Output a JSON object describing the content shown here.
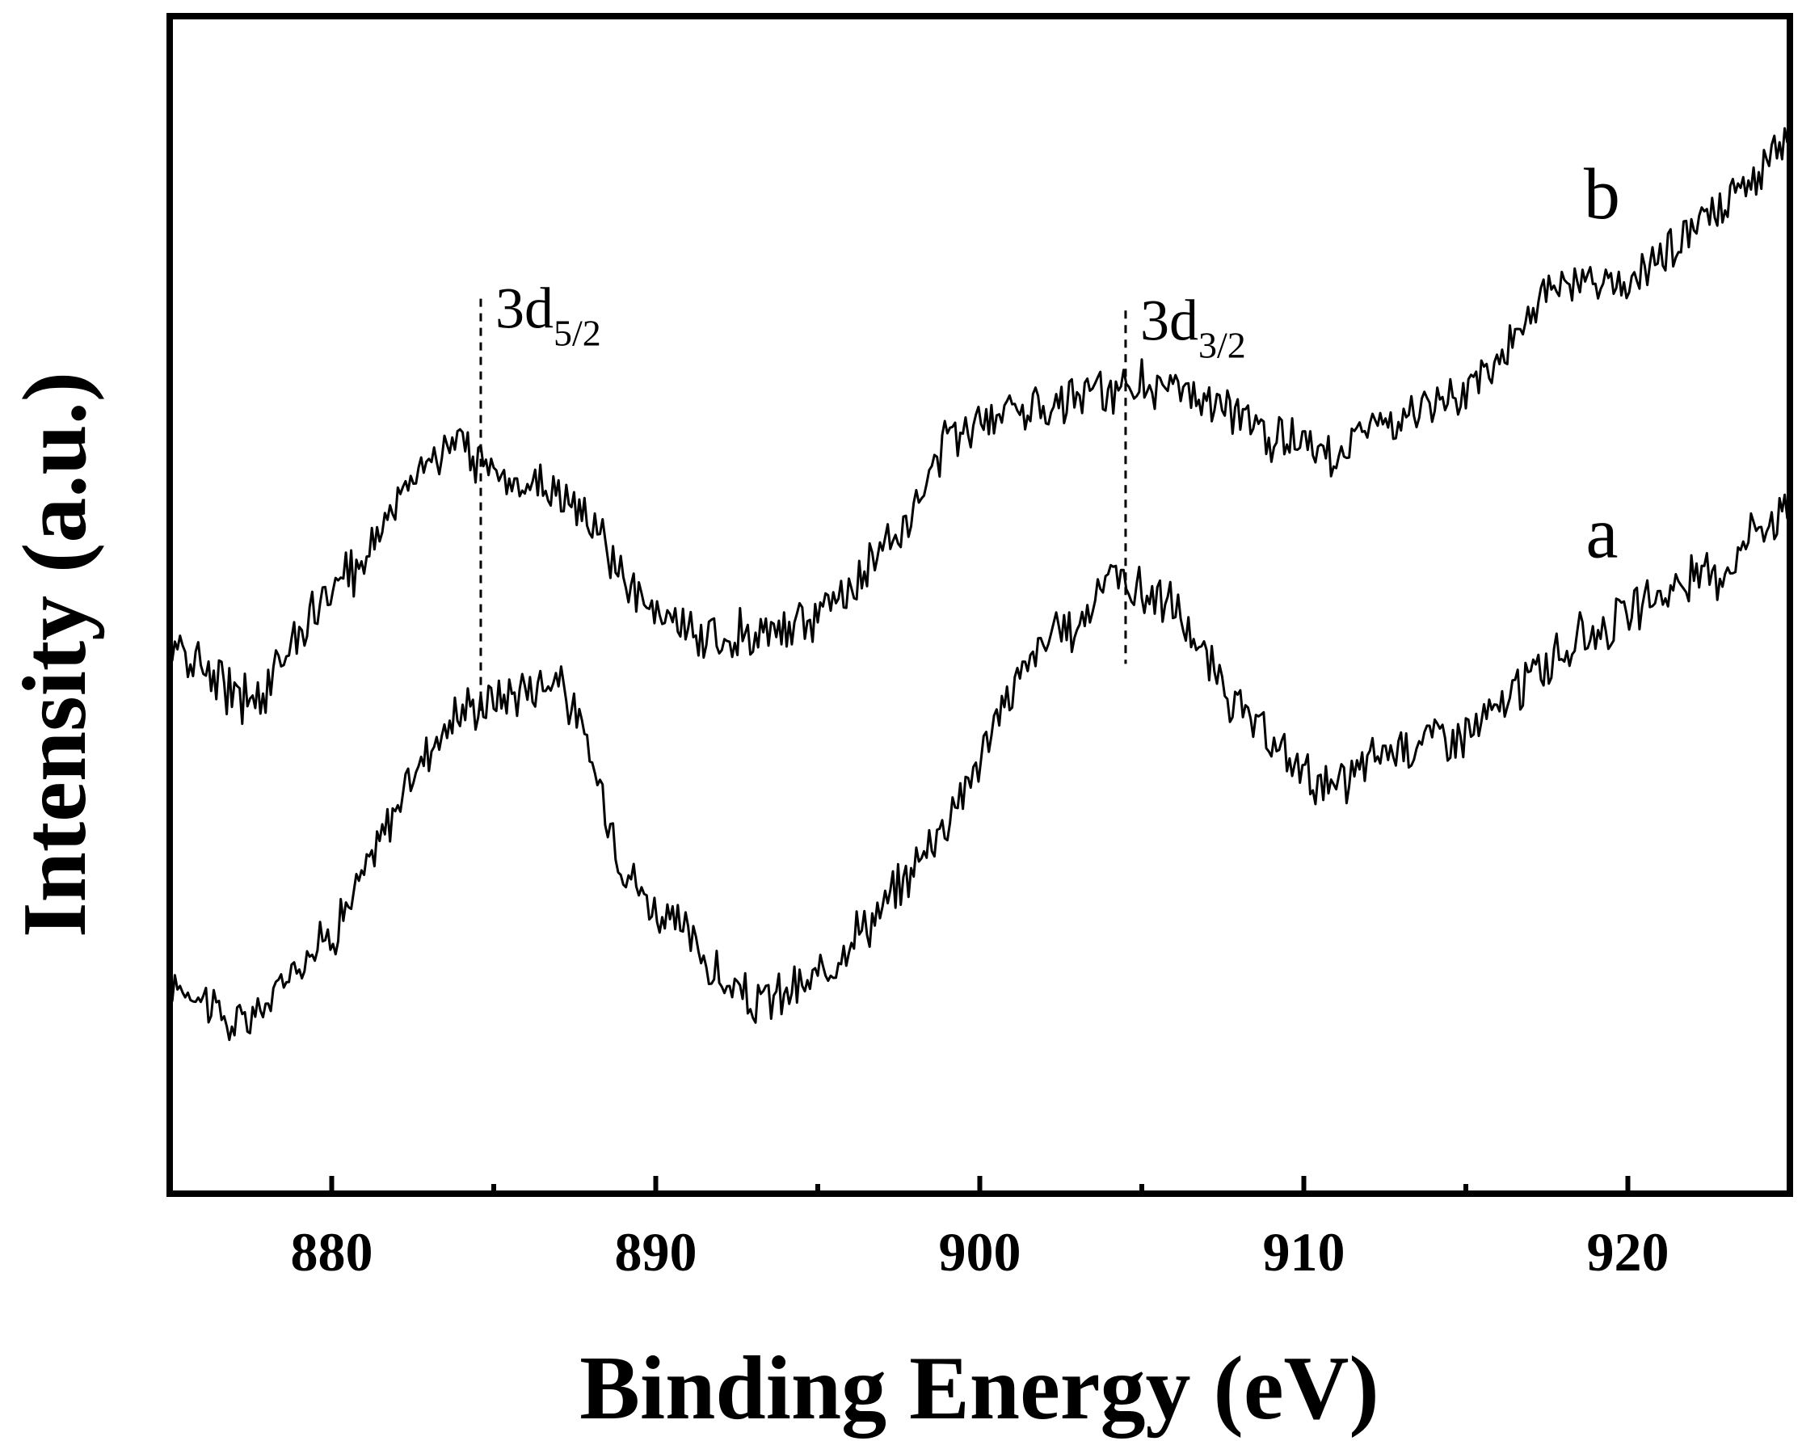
{
  "chart_data": {
    "type": "line",
    "xlabel": "Binding Energy (eV)",
    "ylabel": "Intensity (a.u.)",
    "xlim": [
      875,
      925
    ],
    "ylim": [
      0,
      100
    ],
    "xticks": [
      880,
      890,
      900,
      910,
      920
    ],
    "x_minor_ticks": [
      885,
      895,
      905,
      915
    ],
    "yticks_shown": false,
    "grid": false,
    "legend": "none",
    "line_color": "#000000",
    "series": [
      {
        "name": "a",
        "points": [
          [
            875.0,
            18
          ],
          [
            876.0,
            17
          ],
          [
            877.0,
            14
          ],
          [
            878.0,
            16
          ],
          [
            879.0,
            20
          ],
          [
            880.0,
            22
          ],
          [
            881.0,
            27
          ],
          [
            882.0,
            33
          ],
          [
            883.0,
            38
          ],
          [
            884.0,
            41
          ],
          [
            885.0,
            42
          ],
          [
            886.0,
            43
          ],
          [
            887.0,
            44
          ],
          [
            888.0,
            37
          ],
          [
            889.0,
            28
          ],
          [
            890.0,
            24
          ],
          [
            891.0,
            22
          ],
          [
            892.0,
            18
          ],
          [
            893.0,
            16
          ],
          [
            894.0,
            17
          ],
          [
            895.0,
            18
          ],
          [
            896.0,
            22
          ],
          [
            897.0,
            24
          ],
          [
            898.0,
            28
          ],
          [
            899.0,
            32
          ],
          [
            900.0,
            37
          ],
          [
            901.0,
            43
          ],
          [
            902.0,
            47
          ],
          [
            903.0,
            48
          ],
          [
            904.0,
            53
          ],
          [
            905.0,
            51
          ],
          [
            906.0,
            50
          ],
          [
            907.0,
            45
          ],
          [
            908.0,
            41
          ],
          [
            909.0,
            38
          ],
          [
            910.0,
            36
          ],
          [
            911.0,
            34
          ],
          [
            912.0,
            37
          ],
          [
            913.0,
            38
          ],
          [
            914.0,
            39
          ],
          [
            915.0,
            39
          ],
          [
            916.0,
            41
          ],
          [
            917.0,
            44
          ],
          [
            918.0,
            46
          ],
          [
            919.0,
            48
          ],
          [
            920.0,
            49
          ],
          [
            921.0,
            51
          ],
          [
            922.0,
            52
          ],
          [
            923.0,
            53
          ],
          [
            924.0,
            57
          ],
          [
            925.0,
            58
          ]
        ]
      },
      {
        "name": "b",
        "points": [
          [
            875.0,
            46
          ],
          [
            876.0,
            45
          ],
          [
            877.0,
            42
          ],
          [
            878.0,
            43
          ],
          [
            879.0,
            48
          ],
          [
            880.0,
            51
          ],
          [
            881.0,
            54
          ],
          [
            882.0,
            59
          ],
          [
            883.0,
            63
          ],
          [
            884.0,
            63
          ],
          [
            885.0,
            62
          ],
          [
            886.0,
            60
          ],
          [
            887.0,
            60
          ],
          [
            888.0,
            57
          ],
          [
            889.0,
            52
          ],
          [
            890.0,
            49
          ],
          [
            891.0,
            48
          ],
          [
            892.0,
            47
          ],
          [
            893.0,
            48
          ],
          [
            894.0,
            48
          ],
          [
            895.0,
            49
          ],
          [
            896.0,
            51
          ],
          [
            897.0,
            55
          ],
          [
            898.0,
            58
          ],
          [
            899.0,
            64
          ],
          [
            900.0,
            66
          ],
          [
            901.0,
            67
          ],
          [
            902.0,
            67
          ],
          [
            903.0,
            68
          ],
          [
            904.0,
            68
          ],
          [
            905.0,
            69
          ],
          [
            906.0,
            68
          ],
          [
            907.0,
            67
          ],
          [
            908.0,
            66
          ],
          [
            909.0,
            64
          ],
          [
            910.0,
            64
          ],
          [
            911.0,
            63
          ],
          [
            912.0,
            65
          ],
          [
            913.0,
            66
          ],
          [
            914.0,
            66
          ],
          [
            915.0,
            68
          ],
          [
            916.0,
            71
          ],
          [
            917.0,
            75
          ],
          [
            918.0,
            77
          ],
          [
            919.0,
            77
          ],
          [
            920.0,
            77
          ],
          [
            921.0,
            79
          ],
          [
            922.0,
            82
          ],
          [
            923.0,
            84
          ],
          [
            924.0,
            86
          ],
          [
            925.0,
            90
          ]
        ]
      }
    ],
    "annotations": [
      {
        "x": 884.6,
        "label_main": "3d",
        "label_sub": "5/2",
        "style": "dashed"
      },
      {
        "x": 904.5,
        "label_main": "3d",
        "label_sub": "3/2",
        "style": "dashed"
      }
    ]
  }
}
